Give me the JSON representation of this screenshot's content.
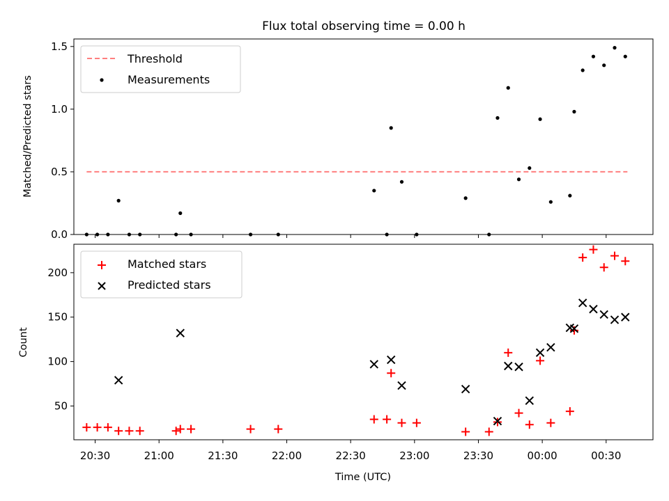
{
  "title": "Flux total observing time = 0.00 h",
  "chart_data": [
    {
      "type": "scatter",
      "ylabel": "Matched/Predicted stars",
      "ylim": [
        0,
        1.56
      ],
      "yticks": [
        "0.0",
        "0.5",
        "1.0",
        "1.5"
      ],
      "xlim": [
        "20:20",
        "00:52"
      ],
      "legend_position": "top-left",
      "series": [
        {
          "name": "Threshold",
          "style": "dashed-line",
          "color": "#ff7f7f",
          "x": [
            "20:26",
            "00:40"
          ],
          "y": [
            0.5,
            0.5
          ]
        },
        {
          "name": "Measurements",
          "style": "dot",
          "color": "#000000",
          "x": [
            "20:26",
            "20:31",
            "20:36",
            "20:41",
            "20:46",
            "20:51",
            "21:08",
            "21:10",
            "21:15",
            "21:43",
            "21:56",
            "22:41",
            "22:47",
            "22:49",
            "22:54",
            "23:01",
            "23:24",
            "23:35",
            "23:39",
            "23:44",
            "23:49",
            "23:54",
            "23:59",
            "00:04",
            "00:13",
            "00:15",
            "00:19",
            "00:24",
            "00:29",
            "00:34",
            "00:39"
          ],
          "y": [
            0.0,
            0.0,
            0.0,
            0.27,
            0.0,
            0.0,
            0.0,
            0.17,
            0.0,
            0.0,
            0.0,
            0.35,
            0.0,
            0.85,
            0.42,
            0.0,
            0.29,
            0.0,
            0.93,
            1.17,
            0.44,
            0.53,
            0.92,
            0.26,
            0.31,
            0.98,
            1.31,
            1.42,
            1.35,
            1.49,
            1.42
          ]
        }
      ]
    },
    {
      "type": "scatter",
      "xlabel": "Time (UTC)",
      "ylabel": "Count",
      "ylim": [
        12,
        232
      ],
      "yticks": [
        "50",
        "100",
        "150",
        "200"
      ],
      "xlim": [
        "20:20",
        "00:52"
      ],
      "xticks": [
        "20:30",
        "21:00",
        "21:30",
        "22:00",
        "22:30",
        "23:00",
        "23:30",
        "00:00",
        "00:30"
      ],
      "legend_position": "top-left",
      "series": [
        {
          "name": "Matched stars",
          "style": "plus",
          "color": "#ff0000",
          "x": [
            "20:26",
            "20:31",
            "20:36",
            "20:41",
            "20:46",
            "20:51",
            "21:08",
            "21:10",
            "21:15",
            "21:43",
            "21:56",
            "22:41",
            "22:47",
            "22:49",
            "22:54",
            "23:01",
            "23:24",
            "23:35",
            "23:39",
            "23:44",
            "23:49",
            "23:54",
            "23:59",
            "00:04",
            "00:13",
            "00:15",
            "00:19",
            "00:24",
            "00:29",
            "00:34",
            "00:39"
          ],
          "y": [
            26,
            26,
            26,
            22,
            22,
            22,
            22,
            24,
            24,
            24,
            24,
            35,
            35,
            87,
            31,
            31,
            21,
            21,
            32,
            110,
            42,
            29,
            101,
            31,
            44,
            135,
            217,
            226,
            206,
            219,
            213
          ]
        },
        {
          "name": "Predicted stars",
          "style": "x",
          "color": "#000000",
          "x": [
            "20:41",
            "21:10",
            "22:41",
            "22:49",
            "22:54",
            "23:24",
            "23:39",
            "23:44",
            "23:49",
            "23:54",
            "23:59",
            "00:04",
            "00:13",
            "00:15",
            "00:19",
            "00:24",
            "00:29",
            "00:34",
            "00:39"
          ],
          "y": [
            79,
            132,
            97,
            102,
            73,
            69,
            33,
            95,
            94,
            56,
            110,
            116,
            138,
            137,
            166,
            159,
            153,
            147,
            150
          ]
        }
      ]
    }
  ]
}
